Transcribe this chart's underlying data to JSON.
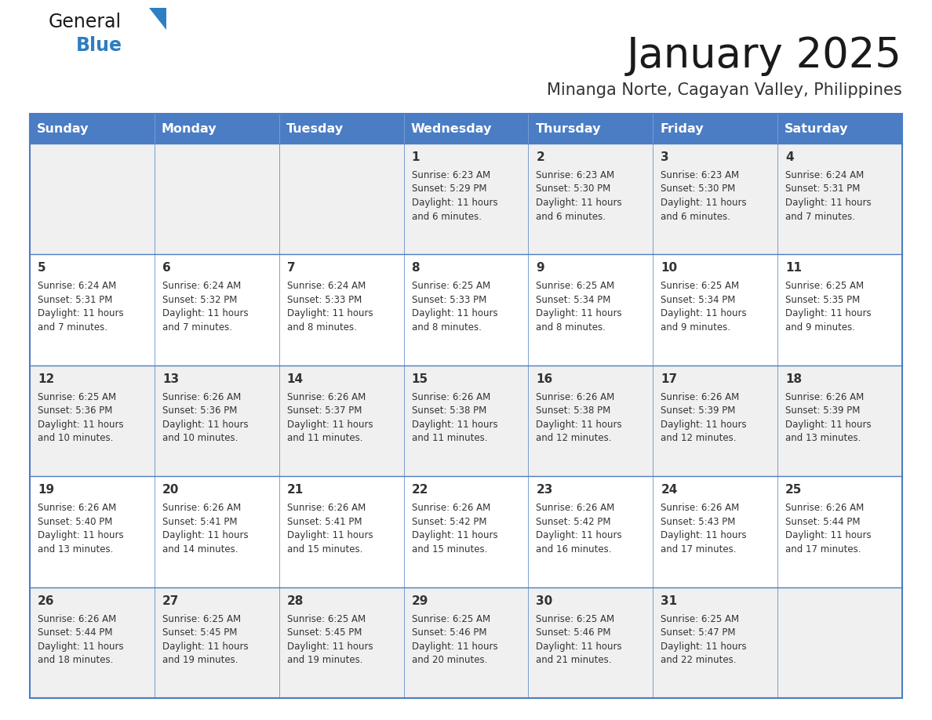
{
  "title": "January 2025",
  "subtitle": "Minanga Norte, Cagayan Valley, Philippines",
  "days_of_week": [
    "Sunday",
    "Monday",
    "Tuesday",
    "Wednesday",
    "Thursday",
    "Friday",
    "Saturday"
  ],
  "header_bg": "#4A7DC4",
  "header_text_color": "#FFFFFF",
  "cell_bg_light": "#F0F0F0",
  "cell_bg_white": "#FFFFFF",
  "border_color": "#4A7DC4",
  "row_divider_color": "#4A7DC4",
  "text_color": "#333333",
  "title_color": "#1a1a1a",
  "subtitle_color": "#333333",
  "calendar": [
    [
      {
        "day": "",
        "sunrise": "",
        "sunset": "",
        "daylight": ""
      },
      {
        "day": "",
        "sunrise": "",
        "sunset": "",
        "daylight": ""
      },
      {
        "day": "",
        "sunrise": "",
        "sunset": "",
        "daylight": ""
      },
      {
        "day": "1",
        "sunrise": "6:23 AM",
        "sunset": "5:29 PM",
        "daylight": "11 hours and 6 minutes."
      },
      {
        "day": "2",
        "sunrise": "6:23 AM",
        "sunset": "5:30 PM",
        "daylight": "11 hours and 6 minutes."
      },
      {
        "day": "3",
        "sunrise": "6:23 AM",
        "sunset": "5:30 PM",
        "daylight": "11 hours and 6 minutes."
      },
      {
        "day": "4",
        "sunrise": "6:24 AM",
        "sunset": "5:31 PM",
        "daylight": "11 hours and 7 minutes."
      }
    ],
    [
      {
        "day": "5",
        "sunrise": "6:24 AM",
        "sunset": "5:31 PM",
        "daylight": "11 hours and 7 minutes."
      },
      {
        "day": "6",
        "sunrise": "6:24 AM",
        "sunset": "5:32 PM",
        "daylight": "11 hours and 7 minutes."
      },
      {
        "day": "7",
        "sunrise": "6:24 AM",
        "sunset": "5:33 PM",
        "daylight": "11 hours and 8 minutes."
      },
      {
        "day": "8",
        "sunrise": "6:25 AM",
        "sunset": "5:33 PM",
        "daylight": "11 hours and 8 minutes."
      },
      {
        "day": "9",
        "sunrise": "6:25 AM",
        "sunset": "5:34 PM",
        "daylight": "11 hours and 8 minutes."
      },
      {
        "day": "10",
        "sunrise": "6:25 AM",
        "sunset": "5:34 PM",
        "daylight": "11 hours and 9 minutes."
      },
      {
        "day": "11",
        "sunrise": "6:25 AM",
        "sunset": "5:35 PM",
        "daylight": "11 hours and 9 minutes."
      }
    ],
    [
      {
        "day": "12",
        "sunrise": "6:25 AM",
        "sunset": "5:36 PM",
        "daylight": "11 hours and 10 minutes."
      },
      {
        "day": "13",
        "sunrise": "6:26 AM",
        "sunset": "5:36 PM",
        "daylight": "11 hours and 10 minutes."
      },
      {
        "day": "14",
        "sunrise": "6:26 AM",
        "sunset": "5:37 PM",
        "daylight": "11 hours and 11 minutes."
      },
      {
        "day": "15",
        "sunrise": "6:26 AM",
        "sunset": "5:38 PM",
        "daylight": "11 hours and 11 minutes."
      },
      {
        "day": "16",
        "sunrise": "6:26 AM",
        "sunset": "5:38 PM",
        "daylight": "11 hours and 12 minutes."
      },
      {
        "day": "17",
        "sunrise": "6:26 AM",
        "sunset": "5:39 PM",
        "daylight": "11 hours and 12 minutes."
      },
      {
        "day": "18",
        "sunrise": "6:26 AM",
        "sunset": "5:39 PM",
        "daylight": "11 hours and 13 minutes."
      }
    ],
    [
      {
        "day": "19",
        "sunrise": "6:26 AM",
        "sunset": "5:40 PM",
        "daylight": "11 hours and 13 minutes."
      },
      {
        "day": "20",
        "sunrise": "6:26 AM",
        "sunset": "5:41 PM",
        "daylight": "11 hours and 14 minutes."
      },
      {
        "day": "21",
        "sunrise": "6:26 AM",
        "sunset": "5:41 PM",
        "daylight": "11 hours and 15 minutes."
      },
      {
        "day": "22",
        "sunrise": "6:26 AM",
        "sunset": "5:42 PM",
        "daylight": "11 hours and 15 minutes."
      },
      {
        "day": "23",
        "sunrise": "6:26 AM",
        "sunset": "5:42 PM",
        "daylight": "11 hours and 16 minutes."
      },
      {
        "day": "24",
        "sunrise": "6:26 AM",
        "sunset": "5:43 PM",
        "daylight": "11 hours and 17 minutes."
      },
      {
        "day": "25",
        "sunrise": "6:26 AM",
        "sunset": "5:44 PM",
        "daylight": "11 hours and 17 minutes."
      }
    ],
    [
      {
        "day": "26",
        "sunrise": "6:26 AM",
        "sunset": "5:44 PM",
        "daylight": "11 hours and 18 minutes."
      },
      {
        "day": "27",
        "sunrise": "6:25 AM",
        "sunset": "5:45 PM",
        "daylight": "11 hours and 19 minutes."
      },
      {
        "day": "28",
        "sunrise": "6:25 AM",
        "sunset": "5:45 PM",
        "daylight": "11 hours and 19 minutes."
      },
      {
        "day": "29",
        "sunrise": "6:25 AM",
        "sunset": "5:46 PM",
        "daylight": "11 hours and 20 minutes."
      },
      {
        "day": "30",
        "sunrise": "6:25 AM",
        "sunset": "5:46 PM",
        "daylight": "11 hours and 21 minutes."
      },
      {
        "day": "31",
        "sunrise": "6:25 AM",
        "sunset": "5:47 PM",
        "daylight": "11 hours and 22 minutes."
      },
      {
        "day": "",
        "sunrise": "",
        "sunset": "",
        "daylight": ""
      }
    ]
  ],
  "logo_general_color": "#1a1a1a",
  "logo_blue_color": "#2E7EC2",
  "logo_triangle_color": "#2E7EC2",
  "fig_width": 11.88,
  "fig_height": 9.18,
  "dpi": 100
}
